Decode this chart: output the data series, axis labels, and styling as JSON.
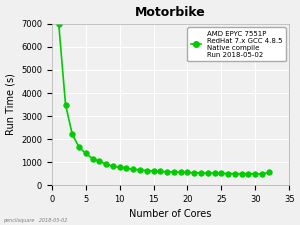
{
  "title": "Motorbike",
  "xlabel": "Number of Cores",
  "ylabel": "Run Time (s)",
  "legend_lines": [
    "AMD EPYC 7551P",
    "RedHat 7.x GCC 4.8.5",
    "Native compile",
    "Run 2018-05-02"
  ],
  "watermark": "pencilsquare   2018-05-02",
  "x": [
    1,
    2,
    3,
    4,
    5,
    6,
    7,
    8,
    9,
    10,
    11,
    12,
    13,
    14,
    15,
    16,
    17,
    18,
    19,
    20,
    21,
    22,
    23,
    24,
    25,
    26,
    27,
    28,
    29,
    30,
    31,
    32
  ],
  "y": [
    7000,
    3500,
    2200,
    1650,
    1375,
    1150,
    1050,
    900,
    830,
    780,
    730,
    690,
    660,
    635,
    615,
    595,
    585,
    575,
    560,
    550,
    540,
    535,
    525,
    515,
    510,
    505,
    500,
    495,
    492,
    490,
    488,
    550
  ],
  "line_color": "#00cc00",
  "marker_color": "#00cc00",
  "bg_color": "#f0f0f0",
  "grid_color": "#ffffff",
  "xlim": [
    0,
    35
  ],
  "ylim": [
    0,
    7000
  ],
  "xticks": [
    0,
    5,
    10,
    15,
    20,
    25,
    30,
    35
  ],
  "yticks": [
    0,
    1000,
    2000,
    3000,
    4000,
    5000,
    6000,
    7000
  ]
}
